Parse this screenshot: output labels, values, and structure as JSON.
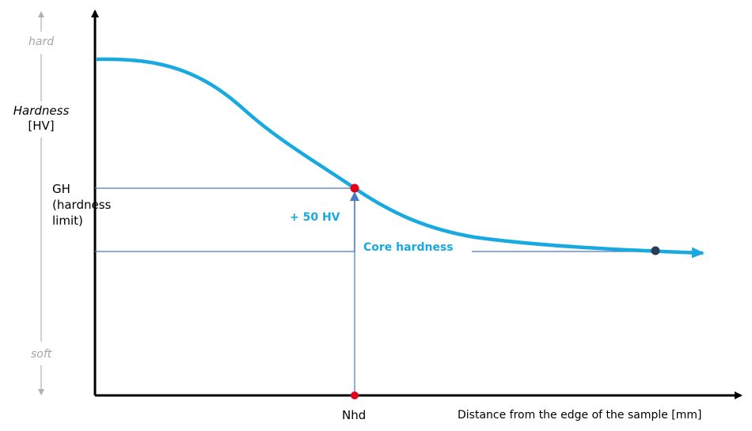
{
  "colors": {
    "axis": "#000000",
    "curve": "#19a9e1",
    "guide": "#4a78c4",
    "marker_red": "#e3001b",
    "marker_dark": "#2b3a55",
    "muted": "#a6a6a6",
    "accent_text": "#19a9e1"
  },
  "y_axis": {
    "label_top_text": "hard",
    "label_bottom_text": "soft",
    "title_line1": "Hardness",
    "title_line2": "[HV]"
  },
  "gh_label": {
    "line1": "GH",
    "line2": "(hardness",
    "line3": "limit)"
  },
  "annotations": {
    "plus_50": "+ 50 HV",
    "core_hardness": "Core hardness"
  },
  "x_axis": {
    "nhd_label": "Nhd",
    "title": "Distance from the edge of the sample [mm]"
  }
}
